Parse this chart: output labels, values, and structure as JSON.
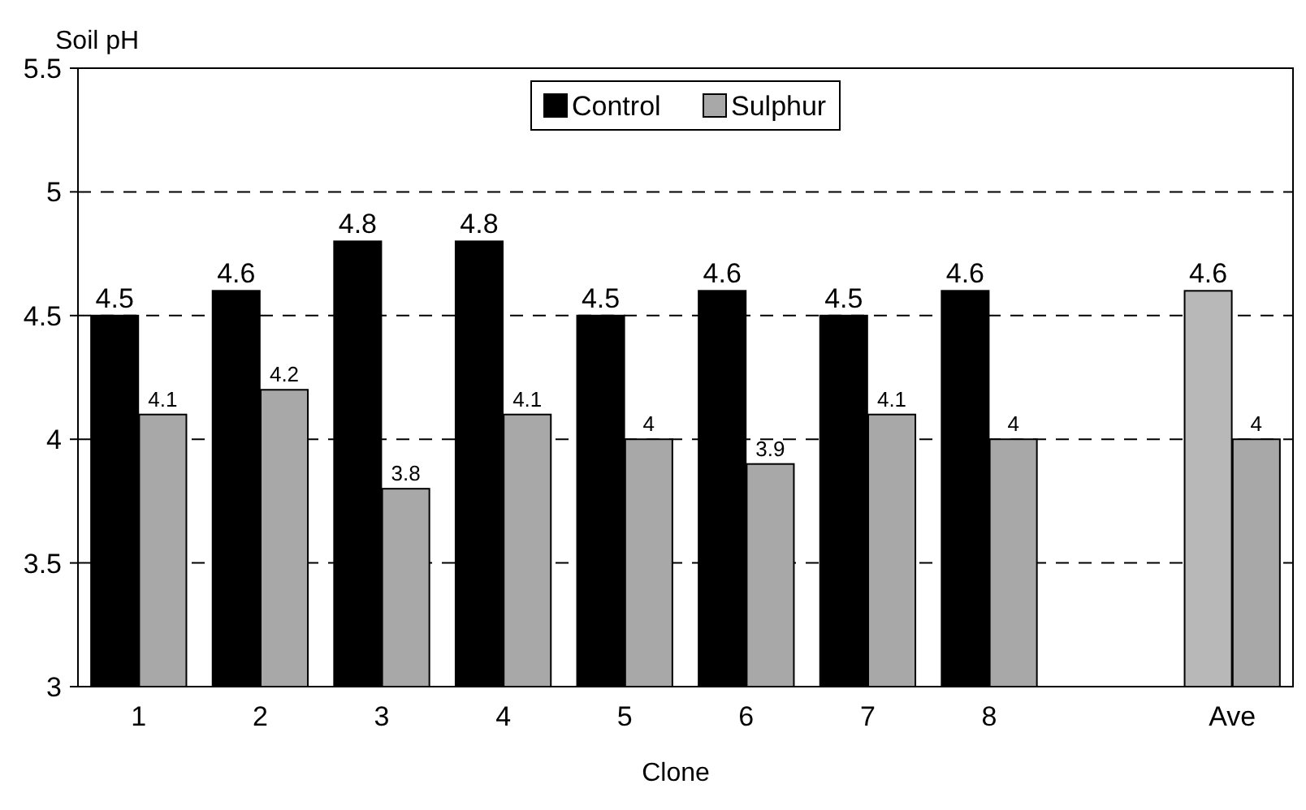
{
  "chart_data": {
    "type": "bar",
    "ylabel": "Soil pH",
    "xlabel": "Clone",
    "categories": [
      "1",
      "2",
      "3",
      "4",
      "5",
      "6",
      "7",
      "8",
      null,
      "Ave"
    ],
    "series": [
      {
        "name": "Control",
        "color": "#000000",
        "colors": [
          "#000000",
          "#000000",
          "#000000",
          "#000000",
          "#000000",
          "#000000",
          "#000000",
          "#000000",
          null,
          "#b8b8b8"
        ],
        "values": [
          4.5,
          4.6,
          4.8,
          4.8,
          4.5,
          4.6,
          4.5,
          4.6,
          null,
          4.6
        ]
      },
      {
        "name": "Sulphur",
        "color": "#a8a8a8",
        "values": [
          4.1,
          4.2,
          3.8,
          4.1,
          4,
          3.9,
          4.1,
          4,
          null,
          4
        ]
      }
    ],
    "ylim": [
      3,
      5.5
    ],
    "yticks": [
      3,
      3.5,
      4,
      4.5,
      5,
      5.5
    ],
    "grid": "y",
    "legend": "top",
    "data_labels": true
  }
}
